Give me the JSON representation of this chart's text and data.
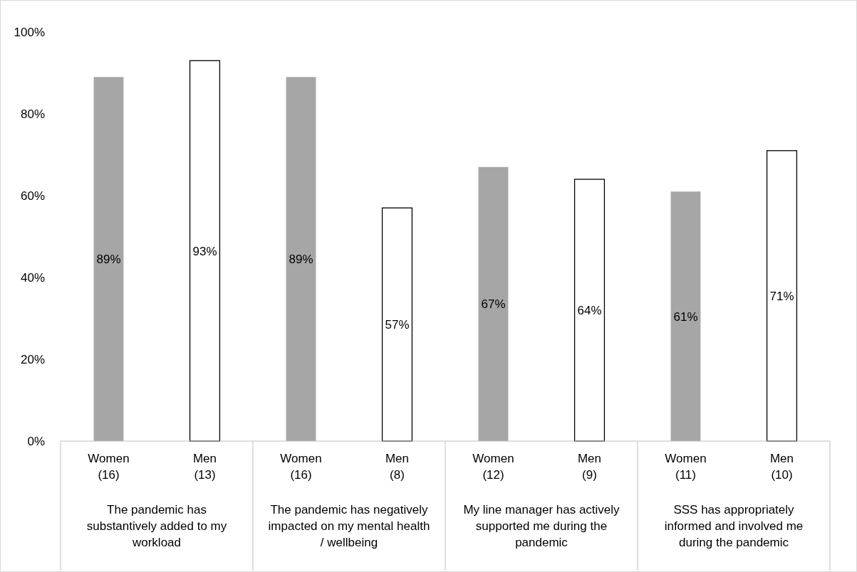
{
  "chart_data": {
    "type": "bar",
    "categories": [
      "Women\n(16)",
      "Men\n(13)",
      "Women\n(16)",
      "Men\n(8)",
      "Women\n(12)",
      "Men\n(9)",
      "Women\n(11)",
      "Men\n(10)"
    ],
    "values": [
      89,
      93,
      89,
      57,
      67,
      64,
      61,
      71
    ],
    "colors": [
      "#a6a6a6",
      "#ffffff",
      "#a6a6a6",
      "#ffffff",
      "#a6a6a6",
      "#ffffff",
      "#a6a6a6",
      "#ffffff"
    ],
    "value_labels": [
      "89%",
      "93%",
      "89%",
      "57%",
      "67%",
      "64%",
      "61%",
      "71%"
    ],
    "annotations": [
      "The pandemic has substantively added to my workload",
      "The pandemic has negatively impacted on my mental health / wellbeing",
      "My line manager has actively supported me during the pandemic",
      "SSS has appropriately informed and involved me during the pandemic"
    ],
    "ylim": [
      0,
      100
    ],
    "yticks": [
      {
        "value": 0,
        "label": "0%"
      },
      {
        "value": 20,
        "label": "20%"
      },
      {
        "value": 40,
        "label": "40%"
      },
      {
        "value": 60,
        "label": "60%"
      },
      {
        "value": 80,
        "label": "80%"
      },
      {
        "value": 100,
        "label": "100%"
      }
    ],
    "grid": false
  }
}
